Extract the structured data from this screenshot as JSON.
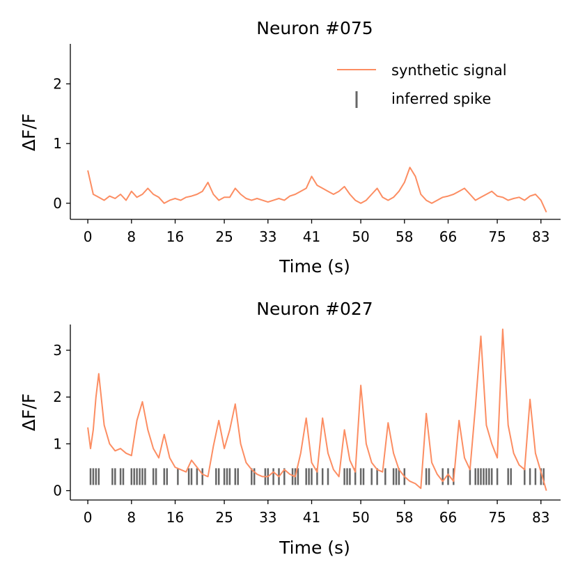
{
  "chart_data": [
    {
      "type": "line",
      "title": "Neuron #075",
      "xlabel": "Time (s)",
      "ylabel": "ΔF/F",
      "xlim": [
        -3.2,
        86.6
      ],
      "ylim": [
        -0.27,
        2.67
      ],
      "xticks": [
        0,
        8,
        16,
        25,
        33,
        41,
        50,
        58,
        66,
        75,
        83
      ],
      "yticks": [
        0,
        1,
        2
      ],
      "legend": {
        "position": "top-right",
        "entries": [
          "synthetic signal",
          "inferred spike"
        ]
      },
      "series": [
        {
          "name": "synthetic signal",
          "color": "#fc8d62",
          "x": [
            0,
            1,
            2,
            3,
            4,
            5,
            6,
            7,
            8,
            9,
            10,
            11,
            12,
            13,
            14,
            15,
            16,
            17,
            18,
            19,
            20,
            21,
            22,
            23,
            24,
            25,
            26,
            27,
            28,
            29,
            30,
            31,
            32,
            33,
            34,
            35,
            36,
            37,
            38,
            39,
            40,
            41,
            42,
            43,
            44,
            45,
            46,
            47,
            48,
            49,
            50,
            51,
            52,
            53,
            54,
            55,
            56,
            57,
            58,
            59,
            60,
            61,
            62,
            63,
            64,
            65,
            66,
            67,
            68,
            69,
            70,
            71,
            72,
            73,
            74,
            75,
            76,
            77,
            78,
            79,
            80,
            81,
            82,
            83,
            84
          ],
          "y": [
            0.55,
            0.15,
            0.1,
            0.05,
            0.12,
            0.08,
            0.15,
            0.05,
            0.2,
            0.1,
            0.15,
            0.25,
            0.15,
            0.1,
            0.0,
            0.05,
            0.08,
            0.05,
            0.1,
            0.12,
            0.15,
            0.2,
            0.35,
            0.15,
            0.05,
            0.1,
            0.1,
            0.25,
            0.15,
            0.08,
            0.05,
            0.08,
            0.05,
            0.02,
            0.05,
            0.08,
            0.05,
            0.12,
            0.15,
            0.2,
            0.25,
            0.45,
            0.3,
            0.25,
            0.2,
            0.15,
            0.2,
            0.28,
            0.15,
            0.05,
            0.0,
            0.05,
            0.15,
            0.25,
            0.1,
            0.05,
            0.1,
            0.2,
            0.35,
            0.6,
            0.45,
            0.15,
            0.05,
            0.0,
            0.05,
            0.1,
            0.12,
            0.15,
            0.2,
            0.25,
            0.15,
            0.05,
            0.1,
            0.15,
            0.2,
            0.12,
            0.1,
            0.05,
            0.08,
            0.1,
            0.05,
            0.12,
            0.15,
            0.05,
            -0.15
          ]
        }
      ],
      "spikes": []
    },
    {
      "type": "line",
      "title": "Neuron #027",
      "xlabel": "Time (s)",
      "ylabel": "ΔF/F",
      "xlim": [
        -3.2,
        86.6
      ],
      "ylim": [
        -0.2,
        3.55
      ],
      "xticks": [
        0,
        8,
        16,
        25,
        33,
        41,
        50,
        58,
        66,
        75,
        83
      ],
      "yticks": [
        0,
        1,
        2,
        3
      ],
      "series": [
        {
          "name": "synthetic signal",
          "color": "#fc8d62",
          "x": [
            0,
            0.5,
            1,
            1.5,
            2,
            3,
            4,
            5,
            6,
            7,
            8,
            9,
            10,
            11,
            12,
            13,
            14,
            15,
            16,
            17,
            18,
            19,
            20,
            21,
            22,
            23,
            24,
            25,
            26,
            27,
            28,
            29,
            30,
            31,
            32,
            33,
            34,
            35,
            36,
            37,
            38,
            39,
            40,
            41,
            42,
            43,
            44,
            45,
            46,
            47,
            48,
            49,
            50,
            51,
            52,
            53,
            54,
            55,
            56,
            57,
            58,
            59,
            60,
            61,
            62,
            63,
            64,
            65,
            66,
            67,
            68,
            69,
            70,
            71,
            72,
            73,
            74,
            75,
            76,
            77,
            78,
            79,
            80,
            81,
            82,
            83,
            84
          ],
          "y": [
            1.35,
            0.9,
            1.3,
            2.0,
            2.5,
            1.4,
            1.0,
            0.85,
            0.9,
            0.8,
            0.75,
            1.5,
            1.9,
            1.3,
            0.9,
            0.7,
            1.2,
            0.7,
            0.5,
            0.45,
            0.4,
            0.65,
            0.5,
            0.35,
            0.3,
            0.95,
            1.5,
            0.9,
            1.3,
            1.85,
            1.0,
            0.6,
            0.45,
            0.35,
            0.3,
            0.3,
            0.4,
            0.3,
            0.45,
            0.35,
            0.3,
            0.8,
            1.55,
            0.6,
            0.4,
            1.55,
            0.8,
            0.45,
            0.3,
            1.3,
            0.65,
            0.4,
            2.25,
            1.0,
            0.6,
            0.45,
            0.4,
            1.45,
            0.8,
            0.45,
            0.3,
            0.2,
            0.15,
            0.05,
            1.65,
            0.6,
            0.35,
            0.2,
            0.35,
            0.2,
            1.5,
            0.7,
            0.45,
            1.8,
            3.3,
            1.4,
            1.0,
            0.7,
            3.45,
            1.4,
            0.8,
            0.55,
            0.45,
            1.95,
            0.8,
            0.4,
            0.0
          ]
        }
      ],
      "spikes": [
        0.5,
        1,
        1.5,
        2,
        4.5,
        5,
        6,
        6.5,
        8,
        8.5,
        9,
        9.5,
        10,
        10.5,
        12,
        12.5,
        14,
        14.5,
        16.5,
        18.5,
        19,
        20,
        21,
        23.5,
        24,
        25,
        25.5,
        26,
        27,
        27.5,
        30,
        30.5,
        32.5,
        33,
        34,
        35,
        36,
        37.5,
        38,
        38.5,
        40,
        40.5,
        41,
        42,
        43,
        44,
        47,
        47.5,
        48,
        49,
        50,
        50.5,
        52,
        53,
        54.5,
        56,
        56.5,
        57,
        58,
        62,
        62.5,
        65,
        66,
        67,
        70,
        71,
        71.5,
        72,
        72.5,
        73,
        73.5,
        74,
        75,
        77,
        77.5,
        80,
        81,
        82,
        83,
        83.5
      ]
    }
  ]
}
